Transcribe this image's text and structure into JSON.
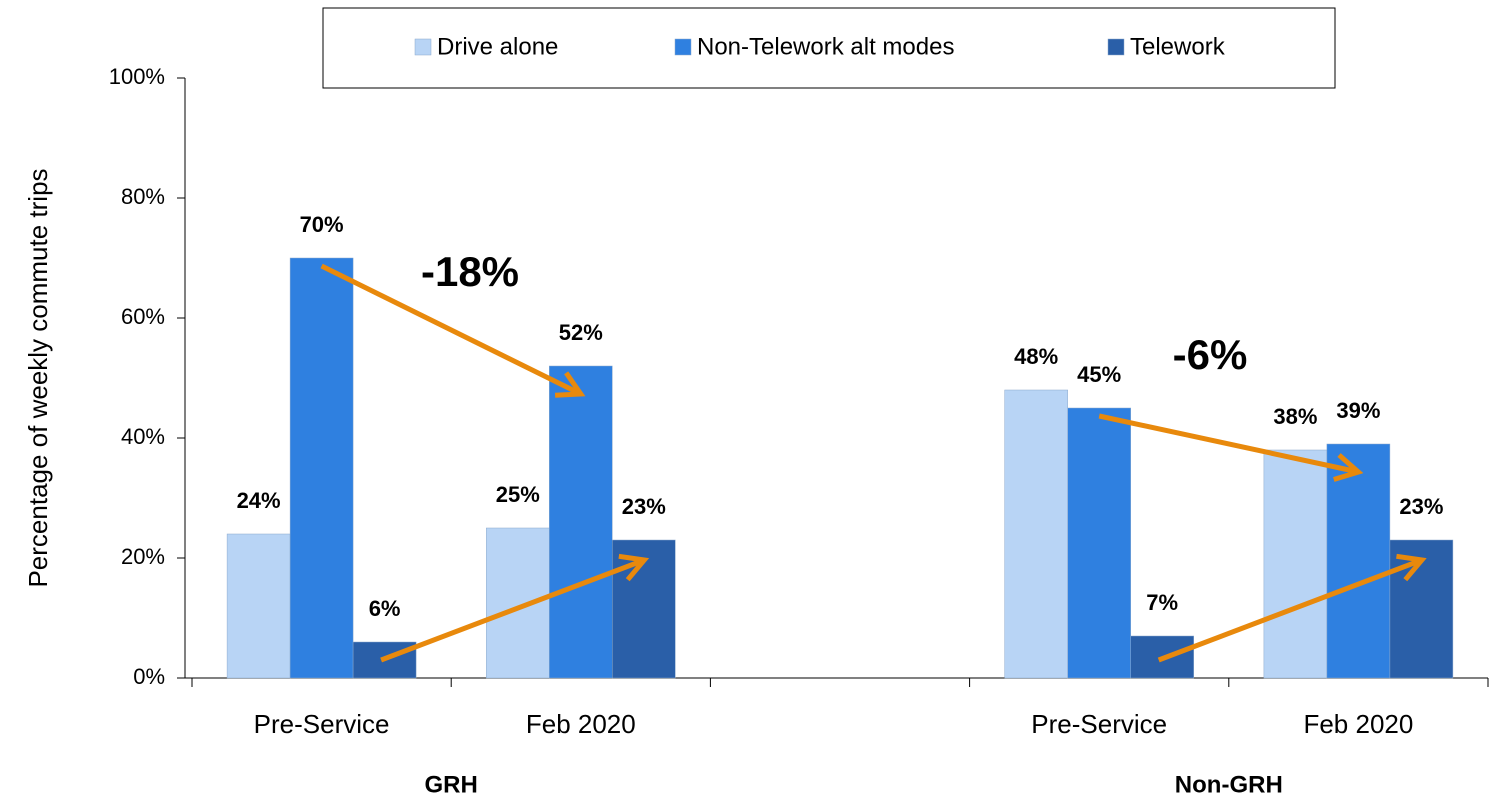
{
  "chart_data": {
    "type": "bar",
    "y_label": "Percentage of weekly commute trips",
    "categories": [
      "Pre-Service",
      "Feb 2020",
      null,
      "Pre-Service",
      "Feb 2020"
    ],
    "groups": [
      "GRH",
      "Non-GRH"
    ],
    "series": [
      {
        "name": "Drive alone",
        "color": "#b8d4f5",
        "values": [
          24,
          25,
          null,
          48,
          38
        ],
        "value_labels": [
          "24%",
          "25%",
          null,
          "48%",
          "38%"
        ]
      },
      {
        "name": "Non-Telework alt modes",
        "color": "#2f80e0",
        "values": [
          70,
          52,
          null,
          45,
          39
        ],
        "value_labels": [
          "70%",
          "52%",
          null,
          "45%",
          "39%"
        ]
      },
      {
        "name": "Telework",
        "color": "#2a5fa8",
        "values": [
          6,
          23,
          null,
          7,
          23
        ],
        "value_labels": [
          "6%",
          "23%",
          null,
          "7%",
          "23%"
        ]
      }
    ],
    "annotations": [
      "-18%",
      "-6%"
    ],
    "ylim": [
      0,
      100
    ],
    "yticks": [
      {
        "value": 0,
        "label": "0%"
      },
      {
        "value": 20,
        "label": "20%"
      },
      {
        "value": 40,
        "label": "40%"
      },
      {
        "value": 60,
        "label": "60%"
      },
      {
        "value": 80,
        "label": "80%"
      },
      {
        "value": 100,
        "label": "100%"
      }
    ],
    "arrow_color": "#e8890c"
  }
}
